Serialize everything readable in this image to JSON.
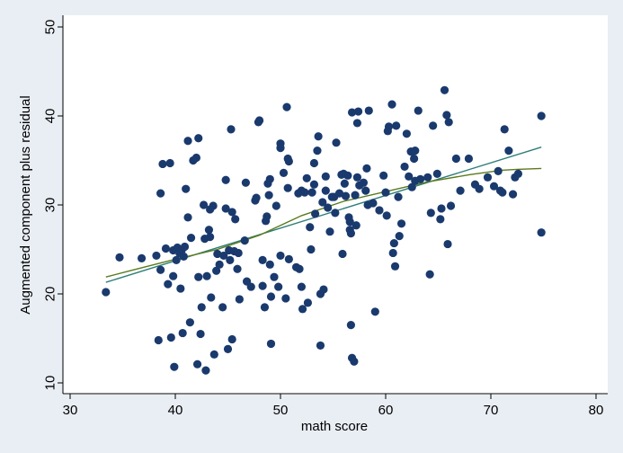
{
  "chart_data": {
    "type": "scatter",
    "xlabel": "math score",
    "ylabel": "Augmented component plus residual",
    "xlim": [
      30,
      80
    ],
    "ylim": [
      10,
      50
    ],
    "xticks": [
      30,
      40,
      50,
      60,
      70,
      80
    ],
    "yticks": [
      10,
      20,
      30,
      40,
      50
    ],
    "grid": false,
    "colors": {
      "background": "#e9eef4",
      "plot_area": "#ffffff",
      "points": "#1a3a6e",
      "linear_fit": "#2e7d7a",
      "lowess": "#5a7a1e"
    },
    "series": [
      {
        "kind": "points",
        "points": [
          [
            33.4,
            20.2
          ],
          [
            34.7,
            24.1
          ],
          [
            36.8,
            24.0
          ],
          [
            38.2,
            24.3
          ],
          [
            38.4,
            14.8
          ],
          [
            38.6,
            22.7
          ],
          [
            38.6,
            31.3
          ],
          [
            38.8,
            34.6
          ],
          [
            39.1,
            25.1
          ],
          [
            39.3,
            21.1
          ],
          [
            39.5,
            34.7
          ],
          [
            39.6,
            15.1
          ],
          [
            39.8,
            22.0
          ],
          [
            39.8,
            24.9
          ],
          [
            39.9,
            11.8
          ],
          [
            40.1,
            23.8
          ],
          [
            40.2,
            25.2
          ],
          [
            40.4,
            24.6
          ],
          [
            40.5,
            20.6
          ],
          [
            40.6,
            24.9
          ],
          [
            40.7,
            15.6
          ],
          [
            40.8,
            24.2
          ],
          [
            40.9,
            25.3
          ],
          [
            41.0,
            31.8
          ],
          [
            41.2,
            28.6
          ],
          [
            41.2,
            37.2
          ],
          [
            41.4,
            16.8
          ],
          [
            41.5,
            26.3
          ],
          [
            41.7,
            35.0
          ],
          [
            42.0,
            35.3
          ],
          [
            42.1,
            12.1
          ],
          [
            42.2,
            37.5
          ],
          [
            42.2,
            21.9
          ],
          [
            42.4,
            15.5
          ],
          [
            42.5,
            18.5
          ],
          [
            42.7,
            30.0
          ],
          [
            42.8,
            26.2
          ],
          [
            42.9,
            11.4
          ],
          [
            43.0,
            22.0
          ],
          [
            43.2,
            27.2
          ],
          [
            43.3,
            26.4
          ],
          [
            43.3,
            29.5
          ],
          [
            43.4,
            19.6
          ],
          [
            43.6,
            29.9
          ],
          [
            43.7,
            13.2
          ],
          [
            43.9,
            22.6
          ],
          [
            44.0,
            24.5
          ],
          [
            44.2,
            23.3
          ],
          [
            44.5,
            18.5
          ],
          [
            44.6,
            24.3
          ],
          [
            44.8,
            32.8
          ],
          [
            44.8,
            29.6
          ],
          [
            45.0,
            13.8
          ],
          [
            45.1,
            24.9
          ],
          [
            45.2,
            23.8
          ],
          [
            45.3,
            38.5
          ],
          [
            45.4,
            14.9
          ],
          [
            45.4,
            29.2
          ],
          [
            45.6,
            24.8
          ],
          [
            45.7,
            28.4
          ],
          [
            45.9,
            22.8
          ],
          [
            46.0,
            24.6
          ],
          [
            46.1,
            19.4
          ],
          [
            46.6,
            26.0
          ],
          [
            46.7,
            32.5
          ],
          [
            46.8,
            21.4
          ],
          [
            47.2,
            20.8
          ],
          [
            47.6,
            30.5
          ],
          [
            47.7,
            30.8
          ],
          [
            47.9,
            39.3
          ],
          [
            48.0,
            39.5
          ],
          [
            48.3,
            20.9
          ],
          [
            48.3,
            23.8
          ],
          [
            48.5,
            18.5
          ],
          [
            48.6,
            28.2
          ],
          [
            48.7,
            28.7
          ],
          [
            48.8,
            32.4
          ],
          [
            48.9,
            31.1
          ],
          [
            49.0,
            32.9
          ],
          [
            49.0,
            23.3
          ],
          [
            49.1,
            19.7
          ],
          [
            49.1,
            14.4
          ],
          [
            49.4,
            21.9
          ],
          [
            49.6,
            29.9
          ],
          [
            49.8,
            20.8
          ],
          [
            50.0,
            24.3
          ],
          [
            50.0,
            36.9
          ],
          [
            50.0,
            36.4
          ],
          [
            50.3,
            33.6
          ],
          [
            50.5,
            19.5
          ],
          [
            50.6,
            41.0
          ],
          [
            50.7,
            31.9
          ],
          [
            50.7,
            35.2
          ],
          [
            50.8,
            34.9
          ],
          [
            50.8,
            23.9
          ],
          [
            51.5,
            23.0
          ],
          [
            51.7,
            31.3
          ],
          [
            51.8,
            22.8
          ],
          [
            52.0,
            31.6
          ],
          [
            52.0,
            20.8
          ],
          [
            52.1,
            18.3
          ],
          [
            52.3,
            31.4
          ],
          [
            52.5,
            33.0
          ],
          [
            52.6,
            19.0
          ],
          [
            52.8,
            27.5
          ],
          [
            52.9,
            25.0
          ],
          [
            53.0,
            31.4
          ],
          [
            53.2,
            34.7
          ],
          [
            53.2,
            32.3
          ],
          [
            53.3,
            29.0
          ],
          [
            53.5,
            36.1
          ],
          [
            53.6,
            37.7
          ],
          [
            53.8,
            20.0
          ],
          [
            53.8,
            14.2
          ],
          [
            54.0,
            30.3
          ],
          [
            54.1,
            20.5
          ],
          [
            54.3,
            33.2
          ],
          [
            54.3,
            31.6
          ],
          [
            54.5,
            29.7
          ],
          [
            54.7,
            27.0
          ],
          [
            54.9,
            30.9
          ],
          [
            55.1,
            30.9
          ],
          [
            55.2,
            29.1
          ],
          [
            55.3,
            37.0
          ],
          [
            55.6,
            31.3
          ],
          [
            55.8,
            33.4
          ],
          [
            55.9,
            24.5
          ],
          [
            56.0,
            33.5
          ],
          [
            56.1,
            32.4
          ],
          [
            56.2,
            31.0
          ],
          [
            56.4,
            33.3
          ],
          [
            56.5,
            28.6
          ],
          [
            56.6,
            28.1
          ],
          [
            56.6,
            27.2
          ],
          [
            56.7,
            26.8
          ],
          [
            56.7,
            16.5
          ],
          [
            56.8,
            40.4
          ],
          [
            56.8,
            12.8
          ],
          [
            57.0,
            12.4
          ],
          [
            57.1,
            31.1
          ],
          [
            57.2,
            27.7
          ],
          [
            57.3,
            33.1
          ],
          [
            57.3,
            39.2
          ],
          [
            57.4,
            40.5
          ],
          [
            57.5,
            32.2
          ],
          [
            57.9,
            32.5
          ],
          [
            58.1,
            31.6
          ],
          [
            58.2,
            34.1
          ],
          [
            58.3,
            30.0
          ],
          [
            58.4,
            40.6
          ],
          [
            58.8,
            30.2
          ],
          [
            59.0,
            18.0
          ],
          [
            59.4,
            29.4
          ],
          [
            59.8,
            33.3
          ],
          [
            60.0,
            31.4
          ],
          [
            60.1,
            28.8
          ],
          [
            60.2,
            38.3
          ],
          [
            60.3,
            38.8
          ],
          [
            60.6,
            41.3
          ],
          [
            60.7,
            24.6
          ],
          [
            60.8,
            25.7
          ],
          [
            60.9,
            23.1
          ],
          [
            61.0,
            38.9
          ],
          [
            61.2,
            30.9
          ],
          [
            61.3,
            26.5
          ],
          [
            61.5,
            27.9
          ],
          [
            61.8,
            34.3
          ],
          [
            62.0,
            38.0
          ],
          [
            62.2,
            33.2
          ],
          [
            62.4,
            36.0
          ],
          [
            62.5,
            32.0
          ],
          [
            62.7,
            35.2
          ],
          [
            62.8,
            36.1
          ],
          [
            62.8,
            32.7
          ],
          [
            63.1,
            40.6
          ],
          [
            63.3,
            32.9
          ],
          [
            64.0,
            33.1
          ],
          [
            64.2,
            22.2
          ],
          [
            64.3,
            29.1
          ],
          [
            64.5,
            38.9
          ],
          [
            64.9,
            33.5
          ],
          [
            65.2,
            28.4
          ],
          [
            65.3,
            29.6
          ],
          [
            65.6,
            42.9
          ],
          [
            65.8,
            40.1
          ],
          [
            65.9,
            25.6
          ],
          [
            66.0,
            39.3
          ],
          [
            66.2,
            29.9
          ],
          [
            66.7,
            35.2
          ],
          [
            67.1,
            31.6
          ],
          [
            67.9,
            35.2
          ],
          [
            68.5,
            32.3
          ],
          [
            68.9,
            31.8
          ],
          [
            69.7,
            33.1
          ],
          [
            70.3,
            32.1
          ],
          [
            70.7,
            33.8
          ],
          [
            70.9,
            31.6
          ],
          [
            71.1,
            31.4
          ],
          [
            71.3,
            38.5
          ],
          [
            71.7,
            36.1
          ],
          [
            72.1,
            31.2
          ],
          [
            72.3,
            33.1
          ],
          [
            72.6,
            33.5
          ],
          [
            74.8,
            40.0
          ],
          [
            74.8,
            26.9
          ]
        ]
      },
      {
        "kind": "linear-fit",
        "points": [
          [
            33.4,
            21.3
          ],
          [
            74.8,
            36.5
          ]
        ]
      },
      {
        "kind": "lowess",
        "points": [
          [
            33.4,
            21.9
          ],
          [
            36,
            22.7
          ],
          [
            40,
            23.9
          ],
          [
            44,
            25.0
          ],
          [
            48,
            26.6
          ],
          [
            52,
            28.8
          ],
          [
            56,
            30.4
          ],
          [
            60,
            31.5
          ],
          [
            64,
            32.6
          ],
          [
            68,
            33.4
          ],
          [
            71,
            33.9
          ],
          [
            72.5,
            34.0
          ],
          [
            74.8,
            34.1
          ]
        ]
      }
    ]
  }
}
